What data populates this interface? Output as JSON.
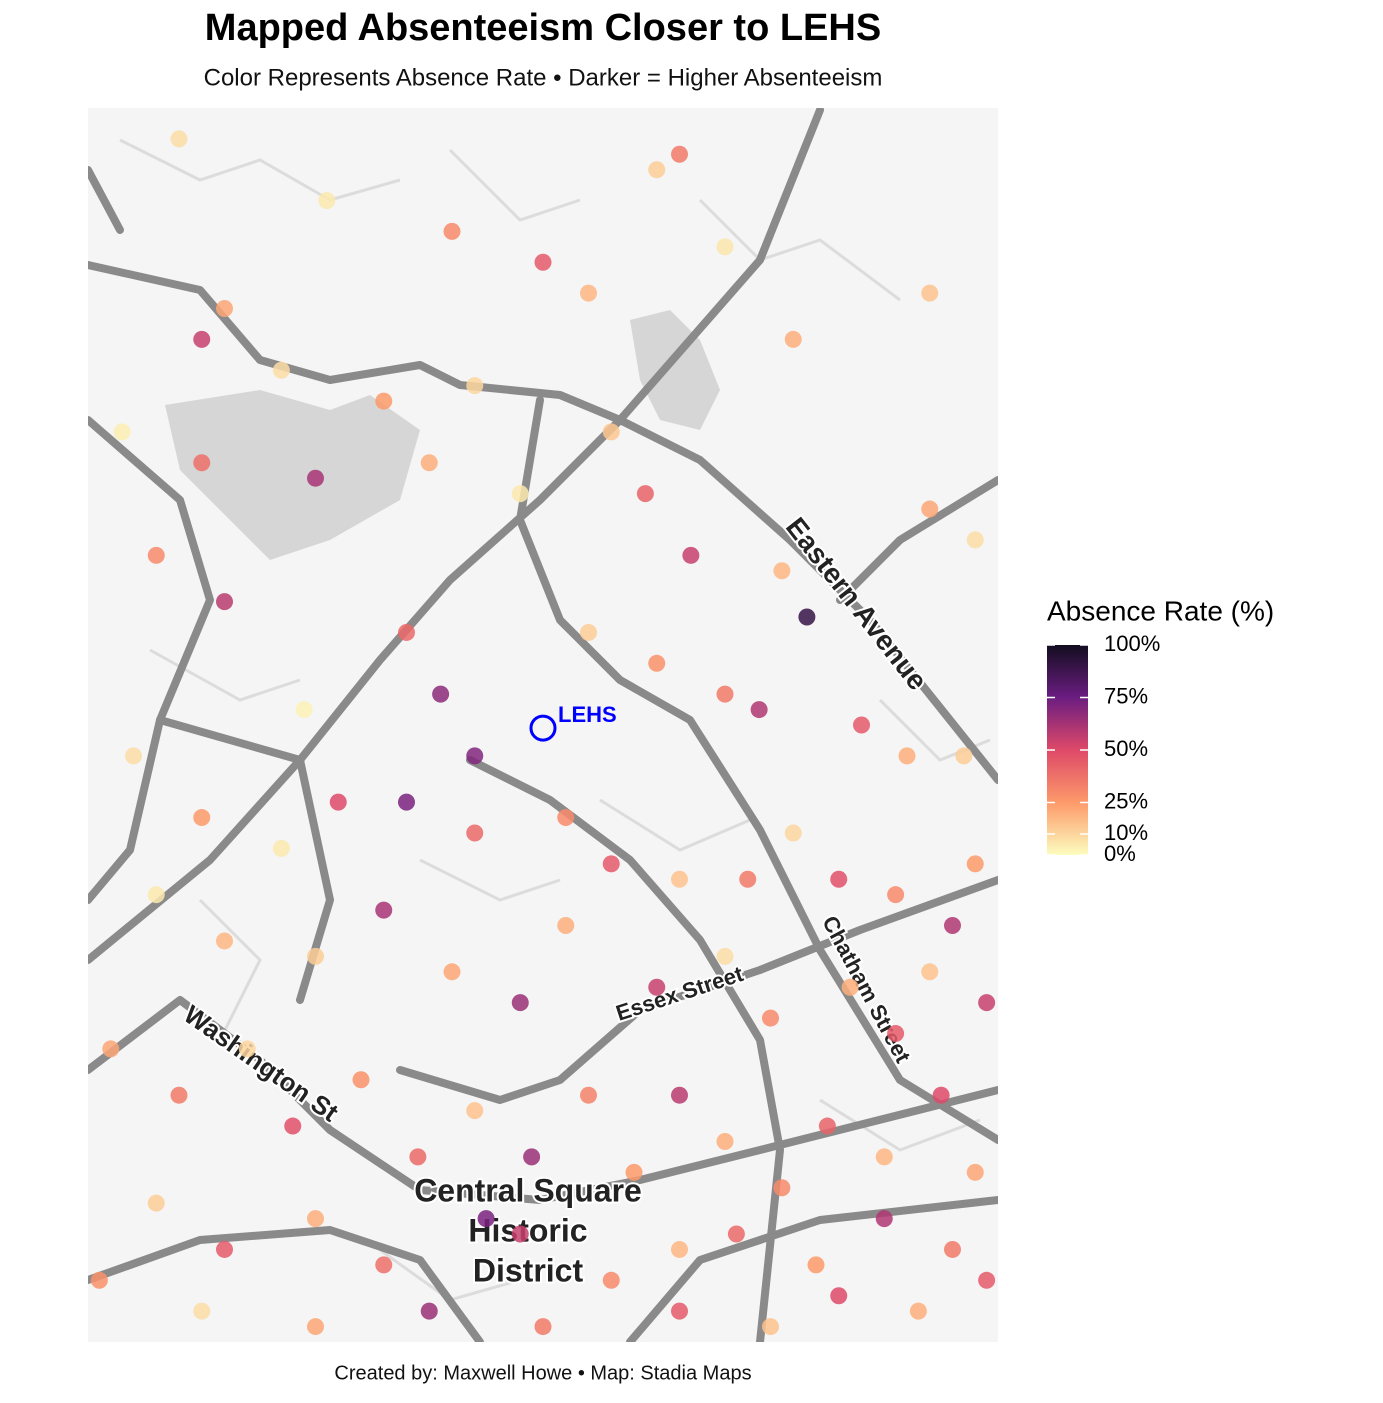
{
  "chart_data": {
    "type": "map-points",
    "title": "Mapped Absenteeism Closer to LEHS",
    "subtitle": "Color Represents Absence Rate • Darker = Higher Absenteeism",
    "caption": "Created by: Maxwell Howe • Map: Stadia Maps",
    "xlim": [
      -70.975,
      -70.935
    ],
    "ylim": [
      42.445,
      42.485
    ],
    "map_labels": [
      "Eastern Avenue",
      "Washington St",
      "Central Square",
      "Historic",
      "District",
      "Essex Street",
      "Chatham Street"
    ],
    "marker": {
      "label": "LEHS",
      "lon": -70.955,
      "lat": 42.4649,
      "color": "#0000ff"
    },
    "legend": {
      "title": "Absence Rate (%)",
      "lim": [
        0,
        100
      ],
      "ticks": [
        {
          "value": 100,
          "label": "100%"
        },
        {
          "value": 75,
          "label": "75%"
        },
        {
          "value": 50,
          "label": "50%"
        },
        {
          "value": 25,
          "label": "25%"
        },
        {
          "value": 10,
          "label": "10%"
        },
        {
          "value": 0,
          "label": "0%"
        }
      ],
      "colormap": [
        "#fcfdbf",
        "#fd9a6a",
        "#de4968",
        "#6b1d81",
        "#120d1f"
      ]
    },
    "points": {
      "lon": [
        -70.971,
        -70.969,
        -70.9645,
        -70.959,
        -70.955,
        -70.953,
        -70.95,
        -70.949,
        -70.947,
        -70.944,
        -70.938,
        -70.97,
        -70.9665,
        -70.962,
        -70.958,
        -70.952,
        -70.9735,
        -70.97,
        -70.965,
        -70.96,
        -70.956,
        -70.9505,
        -70.9485,
        -70.9445,
        -70.938,
        -70.936,
        -70.972,
        -70.969,
        -70.9655,
        -70.961,
        -70.9595,
        -70.958,
        -70.953,
        -70.95,
        -70.947,
        -70.9455,
        -70.9434,
        -70.941,
        -70.939,
        -70.9365,
        -70.973,
        -70.97,
        -70.9665,
        -70.964,
        -70.961,
        -70.958,
        -70.954,
        -70.952,
        -70.949,
        -70.946,
        -70.944,
        -70.942,
        -70.9395,
        -70.937,
        -70.936,
        -70.972,
        -70.969,
        -70.965,
        -70.962,
        -70.959,
        -70.956,
        -70.954,
        -70.95,
        -70.947,
        -70.945,
        -70.9415,
        -70.9395,
        -70.938,
        -70.9355,
        -70.974,
        -70.971,
        -70.968,
        -70.966,
        -70.963,
        -70.9605,
        -70.958,
        -70.9555,
        -70.953,
        -70.951,
        -70.949,
        -70.947,
        -70.9445,
        -70.9425,
        -70.94,
        -70.9375,
        -70.936,
        -70.972,
        -70.969,
        -70.965,
        -70.962,
        -70.9575,
        -70.956,
        -70.952,
        -70.949,
        -70.9465,
        -70.943,
        -70.94,
        -70.937,
        -70.9745,
        -70.97,
        -70.965,
        -70.96,
        -70.955,
        -70.949,
        -70.945,
        -70.942,
        -70.9385,
        -70.9355
      ],
      "lat": [
        42.484,
        42.4785,
        42.482,
        42.481,
        42.48,
        42.479,
        42.483,
        42.4835,
        42.4805,
        42.4775,
        42.479,
        42.4775,
        42.4765,
        42.4755,
        42.476,
        42.4745,
        42.4745,
        42.4735,
        42.473,
        42.4735,
        42.4725,
        42.4725,
        42.4705,
        42.47,
        42.472,
        42.471,
        42.4705,
        42.469,
        42.4655,
        42.468,
        42.466,
        42.464,
        42.468,
        42.467,
        42.466,
        42.4655,
        42.4685,
        42.465,
        42.464,
        42.464,
        42.464,
        42.462,
        42.461,
        42.4625,
        42.4625,
        42.4615,
        42.462,
        42.4605,
        42.46,
        42.46,
        42.4615,
        42.46,
        42.4595,
        42.4585,
        42.4605,
        42.4595,
        42.458,
        42.4575,
        42.459,
        42.457,
        42.456,
        42.4585,
        42.4565,
        42.4575,
        42.4555,
        42.4565,
        42.455,
        42.457,
        42.456,
        42.4545,
        42.453,
        42.4545,
        42.452,
        42.4535,
        42.451,
        42.4525,
        42.451,
        42.453,
        42.4505,
        42.453,
        42.4515,
        42.45,
        42.452,
        42.451,
        42.453,
        42.4505,
        42.4495,
        42.448,
        42.449,
        42.4475,
        42.449,
        42.4485,
        42.447,
        42.448,
        42.4485,
        42.4475,
        42.449,
        42.448,
        42.447,
        42.446,
        42.4455,
        42.446,
        42.4455,
        42.446,
        42.4455,
        42.4465,
        42.446,
        42.447
      ],
      "rate": [
        8,
        22,
        5,
        30,
        45,
        18,
        12,
        35,
        6,
        20,
        15,
        55,
        8,
        25,
        10,
        14,
        4,
        38,
        62,
        20,
        5,
        42,
        55,
        18,
        22,
        8,
        30,
        58,
        3,
        40,
        68,
        70,
        12,
        28,
        35,
        60,
        90,
        45,
        20,
        12,
        8,
        25,
        5,
        50,
        72,
        40,
        30,
        45,
        15,
        35,
        10,
        48,
        30,
        60,
        25,
        5,
        18,
        12,
        62,
        22,
        65,
        20,
        55,
        8,
        30,
        20,
        45,
        15,
        55,
        22,
        35,
        10,
        48,
        28,
        40,
        15,
        65,
        32,
        25,
        58,
        20,
        30,
        42,
        18,
        50,
        22,
        12,
        45,
        20,
        38,
        72,
        55,
        30,
        18,
        40,
        25,
        60,
        35,
        28,
        8,
        22,
        65,
        35,
        45,
        15,
        50,
        20,
        45
      ]
    }
  }
}
